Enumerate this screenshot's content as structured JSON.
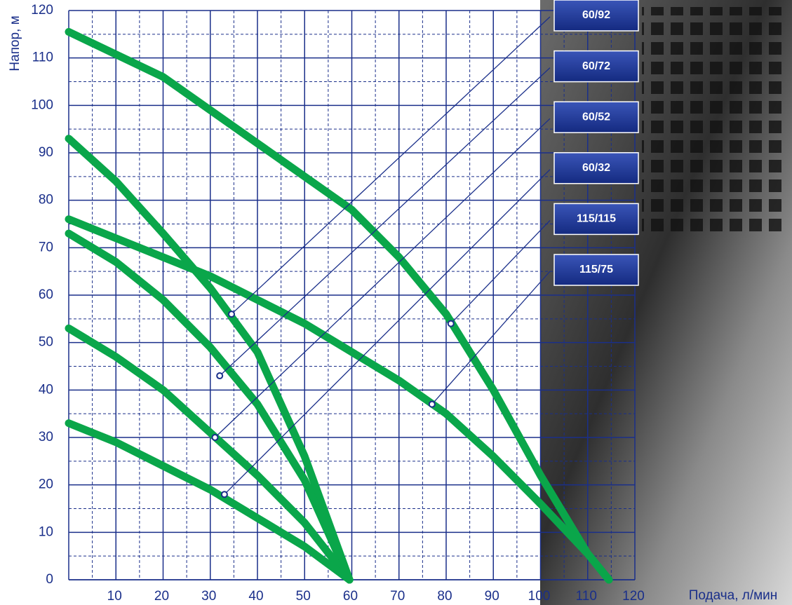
{
  "chart_data": {
    "type": "line",
    "xlabel": "Подача, л/мин",
    "ylabel": "Напор, м",
    "xlim": [
      0,
      120
    ],
    "ylim": [
      0,
      120
    ],
    "xticks": [
      10,
      20,
      30,
      40,
      50,
      60,
      70,
      80,
      90,
      100,
      110,
      120
    ],
    "yticks": [
      0,
      10,
      20,
      30,
      40,
      50,
      60,
      70,
      80,
      90,
      100,
      110,
      120
    ],
    "grid": true,
    "series": [
      {
        "name": "60/92",
        "color": "#0aa64a",
        "x": [
          0,
          10,
          20,
          30,
          40,
          50,
          59.5
        ],
        "values": [
          93,
          84,
          73,
          61.5,
          48,
          26,
          0
        ],
        "point": [
          34.5,
          56
        ]
      },
      {
        "name": "60/72",
        "color": "#0aa64a",
        "x": [
          0,
          10,
          20,
          30,
          40,
          50,
          59.5
        ],
        "values": [
          73,
          67,
          59,
          49,
          37,
          21,
          0
        ],
        "point": [
          32,
          43
        ]
      },
      {
        "name": "60/52",
        "color": "#0aa64a",
        "x": [
          0,
          10,
          20,
          30,
          40,
          50,
          59.5
        ],
        "values": [
          53,
          47,
          40,
          31,
          22,
          12,
          0
        ],
        "point": [
          31,
          30
        ]
      },
      {
        "name": "60/32",
        "color": "#0aa64a",
        "x": [
          0,
          10,
          20,
          30,
          40,
          50,
          59.5
        ],
        "values": [
          33,
          29,
          24,
          19,
          13,
          7,
          0
        ],
        "point": [
          33,
          18
        ]
      },
      {
        "name": "115/115",
        "color": "#0aa64a",
        "x": [
          0,
          20,
          40,
          60,
          70,
          80,
          90,
          100,
          110,
          114.5
        ],
        "values": [
          115.5,
          106,
          92,
          78,
          68,
          56,
          40,
          22,
          5.5,
          0
        ],
        "point": [
          81,
          54
        ]
      },
      {
        "name": "115/75",
        "color": "#0aa64a",
        "x": [
          0,
          10,
          20,
          30,
          40,
          50,
          60,
          70,
          80,
          90,
          100,
          110,
          114.5
        ],
        "values": [
          76,
          72,
          68,
          64,
          59,
          54,
          48,
          42,
          35,
          26,
          16,
          5.5,
          0
        ],
        "point": [
          77,
          37
        ]
      }
    ]
  }
}
